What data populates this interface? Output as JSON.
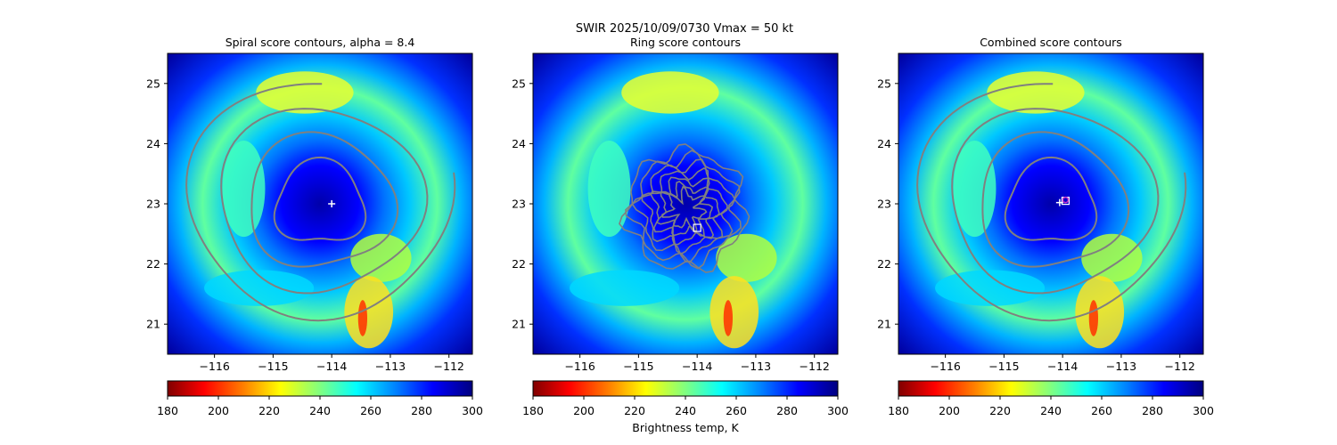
{
  "figure": {
    "suptitle": "SWIR  2025/10/09/0730    Vmax = 50 kt",
    "colorbar_label": "Brightness temp, K"
  },
  "colors": {
    "contour": "#808080",
    "marker_cross": "#ffffff",
    "marker_square": "#ffffff",
    "marker_combined": "#cc33cc",
    "colormap": [
      "#800000",
      "#ff0000",
      "#ff8000",
      "#ffff00",
      "#80ff80",
      "#00ffff",
      "#0080ff",
      "#0000ff",
      "#000080"
    ]
  },
  "chart_data": [
    {
      "type": "heatmap",
      "title": "Spiral score contours, alpha =  8.4",
      "xlim": [
        -116.8,
        -111.6
      ],
      "ylim": [
        20.5,
        25.5
      ],
      "xticks": [
        "−116",
        "−115",
        "−114",
        "−113",
        "−112"
      ],
      "xtick_values": [
        -116,
        -115,
        -114,
        -113,
        -112
      ],
      "yticks": [
        "21",
        "22",
        "23",
        "24",
        "25"
      ],
      "ytick_values": [
        21,
        22,
        23,
        24,
        25
      ],
      "center": [
        -114.0,
        23.0
      ],
      "marker": "cross",
      "colorbar": {
        "ticks": [
          "180",
          "200",
          "220",
          "240",
          "260",
          "280",
          "300"
        ],
        "range": [
          180,
          300
        ]
      }
    },
    {
      "type": "heatmap",
      "title": "Ring score contours",
      "xlim": [
        -116.8,
        -111.6
      ],
      "ylim": [
        20.5,
        25.5
      ],
      "xticks": [
        "−116",
        "−115",
        "−114",
        "−113",
        "−112"
      ],
      "xtick_values": [
        -116,
        -115,
        -114,
        -113,
        -112
      ],
      "yticks": [
        "21",
        "22",
        "23",
        "24",
        "25"
      ],
      "ytick_values": [
        21,
        22,
        23,
        24,
        25
      ],
      "center": [
        -114.0,
        22.6
      ],
      "marker": "square",
      "colorbar": {
        "ticks": [
          "180",
          "200",
          "220",
          "240",
          "260",
          "280",
          "300"
        ],
        "range": [
          180,
          300
        ]
      }
    },
    {
      "type": "heatmap",
      "title": "Combined score contours",
      "xlim": [
        -116.8,
        -111.6
      ],
      "ylim": [
        20.5,
        25.5
      ],
      "xticks": [
        "−116",
        "−115",
        "−114",
        "−113",
        "−112"
      ],
      "xtick_values": [
        -116,
        -115,
        -114,
        -113,
        -112
      ],
      "yticks": [
        "21",
        "22",
        "23",
        "24",
        "25"
      ],
      "ytick_values": [
        21,
        22,
        23,
        24,
        25
      ],
      "center": [
        -113.95,
        23.05
      ],
      "marker": "combined",
      "colorbar": {
        "ticks": [
          "180",
          "200",
          "220",
          "240",
          "260",
          "280",
          "300"
        ],
        "range": [
          180,
          300
        ]
      }
    }
  ]
}
